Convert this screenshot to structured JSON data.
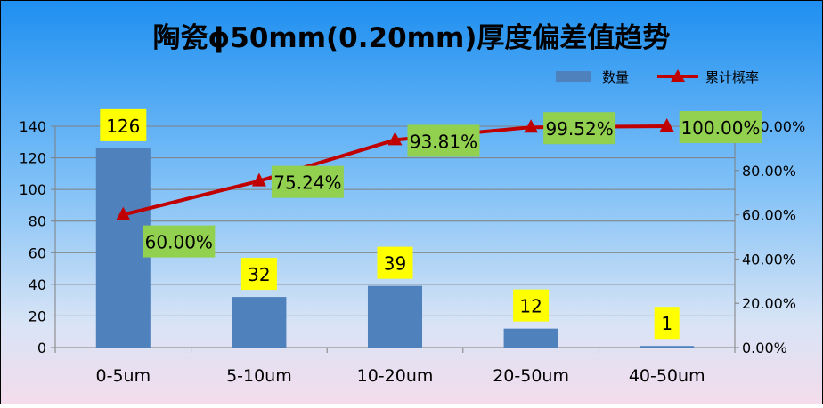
{
  "chart_data": {
    "type": "bar",
    "title": "陶瓷ϕ50mm(0.20mm)厚度偏差值趋势",
    "categories": [
      "0-5um",
      "5-10um",
      "10-20um",
      "20-50um",
      "40-50um"
    ],
    "series": [
      {
        "name": "数量",
        "type": "bar",
        "axis": "left",
        "values": [
          126,
          32,
          39,
          12,
          1
        ],
        "labels": [
          "126",
          "32",
          "39",
          "12",
          "1"
        ],
        "color": "#4F81BD",
        "label_bg": "#FFFF00"
      },
      {
        "name": "累计概率",
        "type": "line",
        "axis": "right",
        "values": [
          60.0,
          75.24,
          93.81,
          99.52,
          100.0
        ],
        "labels": [
          "60.00%",
          "75.24%",
          "93.81%",
          "99.52%",
          "100.00%"
        ],
        "color": "#C00000",
        "label_bg": "#92D050"
      }
    ],
    "y_left": {
      "min": 0,
      "max": 140,
      "step": 20,
      "ticks": [
        "0",
        "20",
        "40",
        "60",
        "80",
        "100",
        "120",
        "140"
      ]
    },
    "y_right": {
      "min": 0,
      "max": 100,
      "step": 20,
      "ticks": [
        "0.00%",
        "20.00%",
        "40.00%",
        "60.00%",
        "80.00%",
        "100.00%"
      ]
    },
    "xlabel": "",
    "ylabel": "",
    "grid": true,
    "legend": "top-right"
  }
}
